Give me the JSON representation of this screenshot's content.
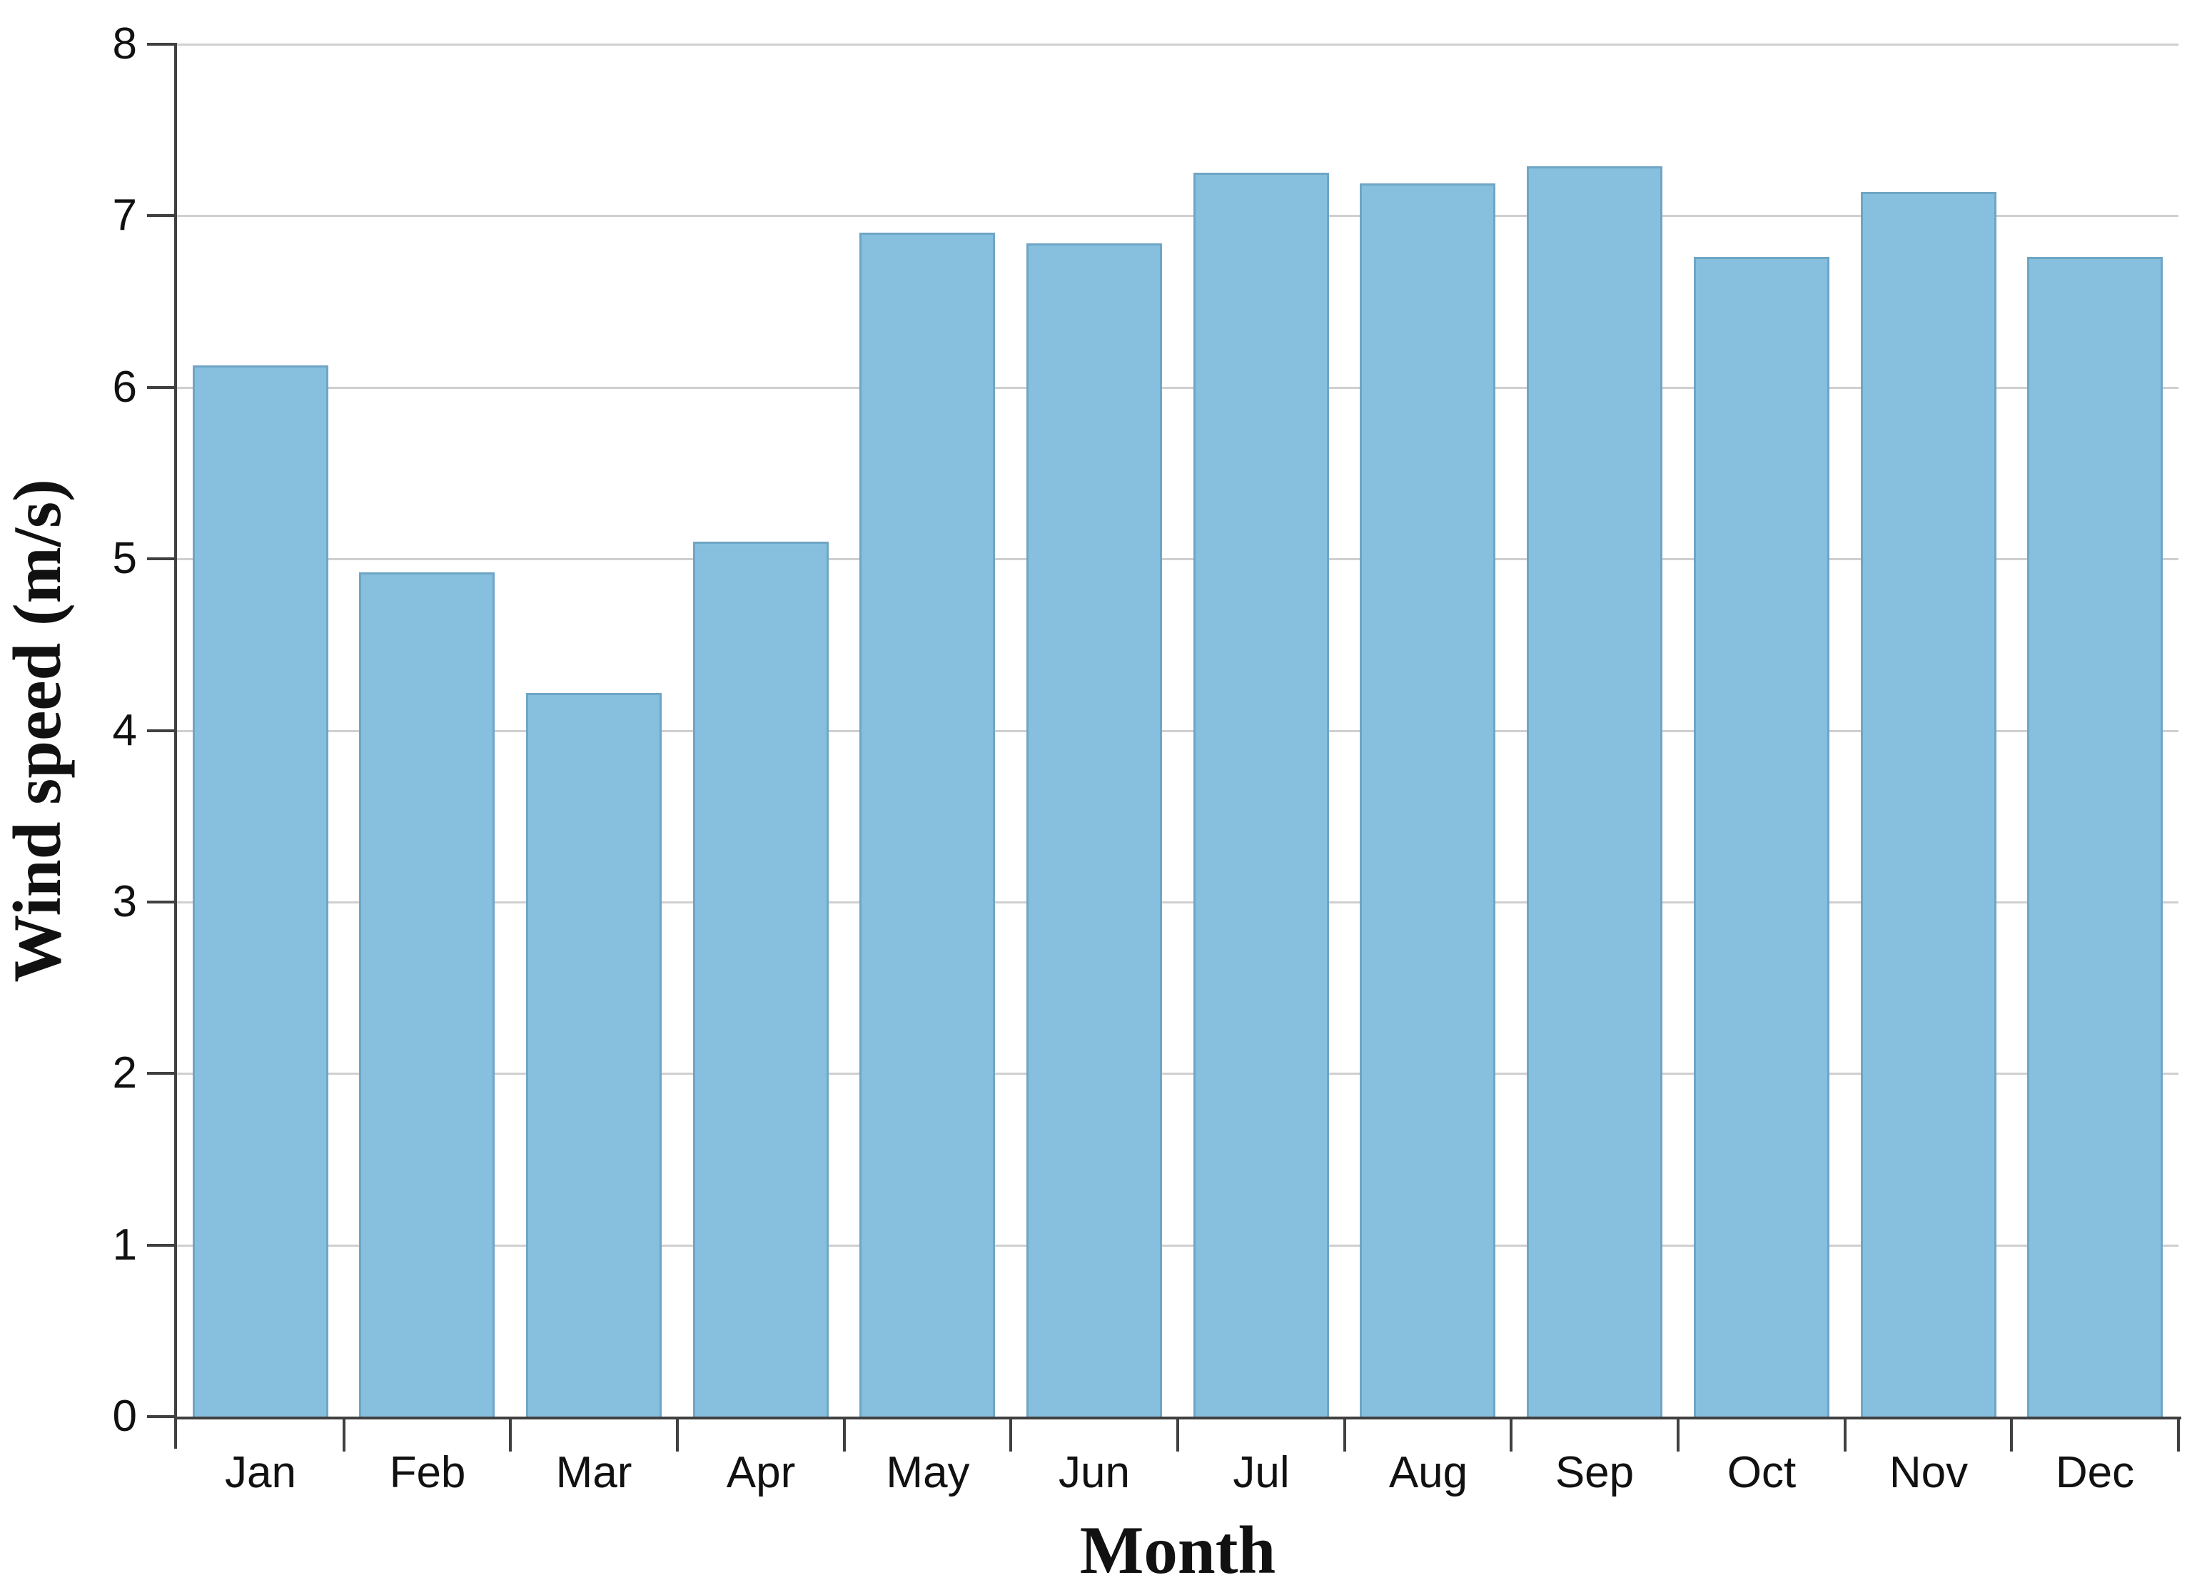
{
  "figure": {
    "background": "#ffffff"
  },
  "chart_data": {
    "type": "bar",
    "title": "",
    "xlabel": "Month",
    "ylabel": "Wind speed (m/s)",
    "categories": [
      "Jan",
      "Feb",
      "Mar",
      "Apr",
      "May",
      "Jun",
      "Jul",
      "Aug",
      "Sep",
      "Oct",
      "Nov",
      "Dec"
    ],
    "values": [
      6.13,
      4.92,
      4.22,
      5.1,
      6.9,
      6.84,
      7.25,
      7.19,
      7.29,
      6.76,
      7.14,
      6.76
    ],
    "ylim": [
      0,
      8
    ],
    "yticks": [
      0,
      1,
      2,
      3,
      4,
      5,
      6,
      7,
      8
    ],
    "grid": "horizontal",
    "legend": "none",
    "colors": {
      "bar_fill": "#87c0de",
      "bar_border": "#6fa5c5",
      "gridline": "#cfcfcf",
      "axis": "#404040",
      "text": "#111111"
    }
  }
}
